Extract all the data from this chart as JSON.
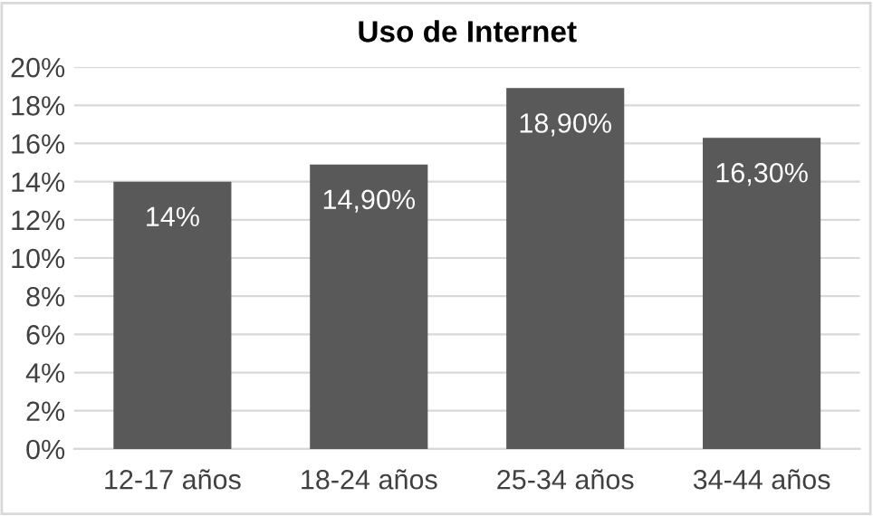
{
  "chart_data": {
    "type": "bar",
    "title": "Uso de Internet",
    "categories": [
      "12-17 años",
      "18-24 años",
      "25-34 años",
      "34-44 años"
    ],
    "values": [
      14,
      14.9,
      18.9,
      16.3
    ],
    "value_labels": [
      "14%",
      "14,90%",
      "18,90%",
      "16,30%"
    ],
    "color": "#595959",
    "ylim": [
      0,
      20
    ],
    "yticks": [
      {
        "value": 0,
        "label": "0%"
      },
      {
        "value": 2,
        "label": "2%"
      },
      {
        "value": 4,
        "label": "4%"
      },
      {
        "value": 6,
        "label": "6%"
      },
      {
        "value": 8,
        "label": "8%"
      },
      {
        "value": 10,
        "label": "10%"
      },
      {
        "value": 12,
        "label": "12%"
      },
      {
        "value": 14,
        "label": "14%"
      },
      {
        "value": 16,
        "label": "16%"
      },
      {
        "value": 18,
        "label": "18%"
      },
      {
        "value": 20,
        "label": "20%"
      }
    ],
    "grid": "y",
    "legend": false
  }
}
